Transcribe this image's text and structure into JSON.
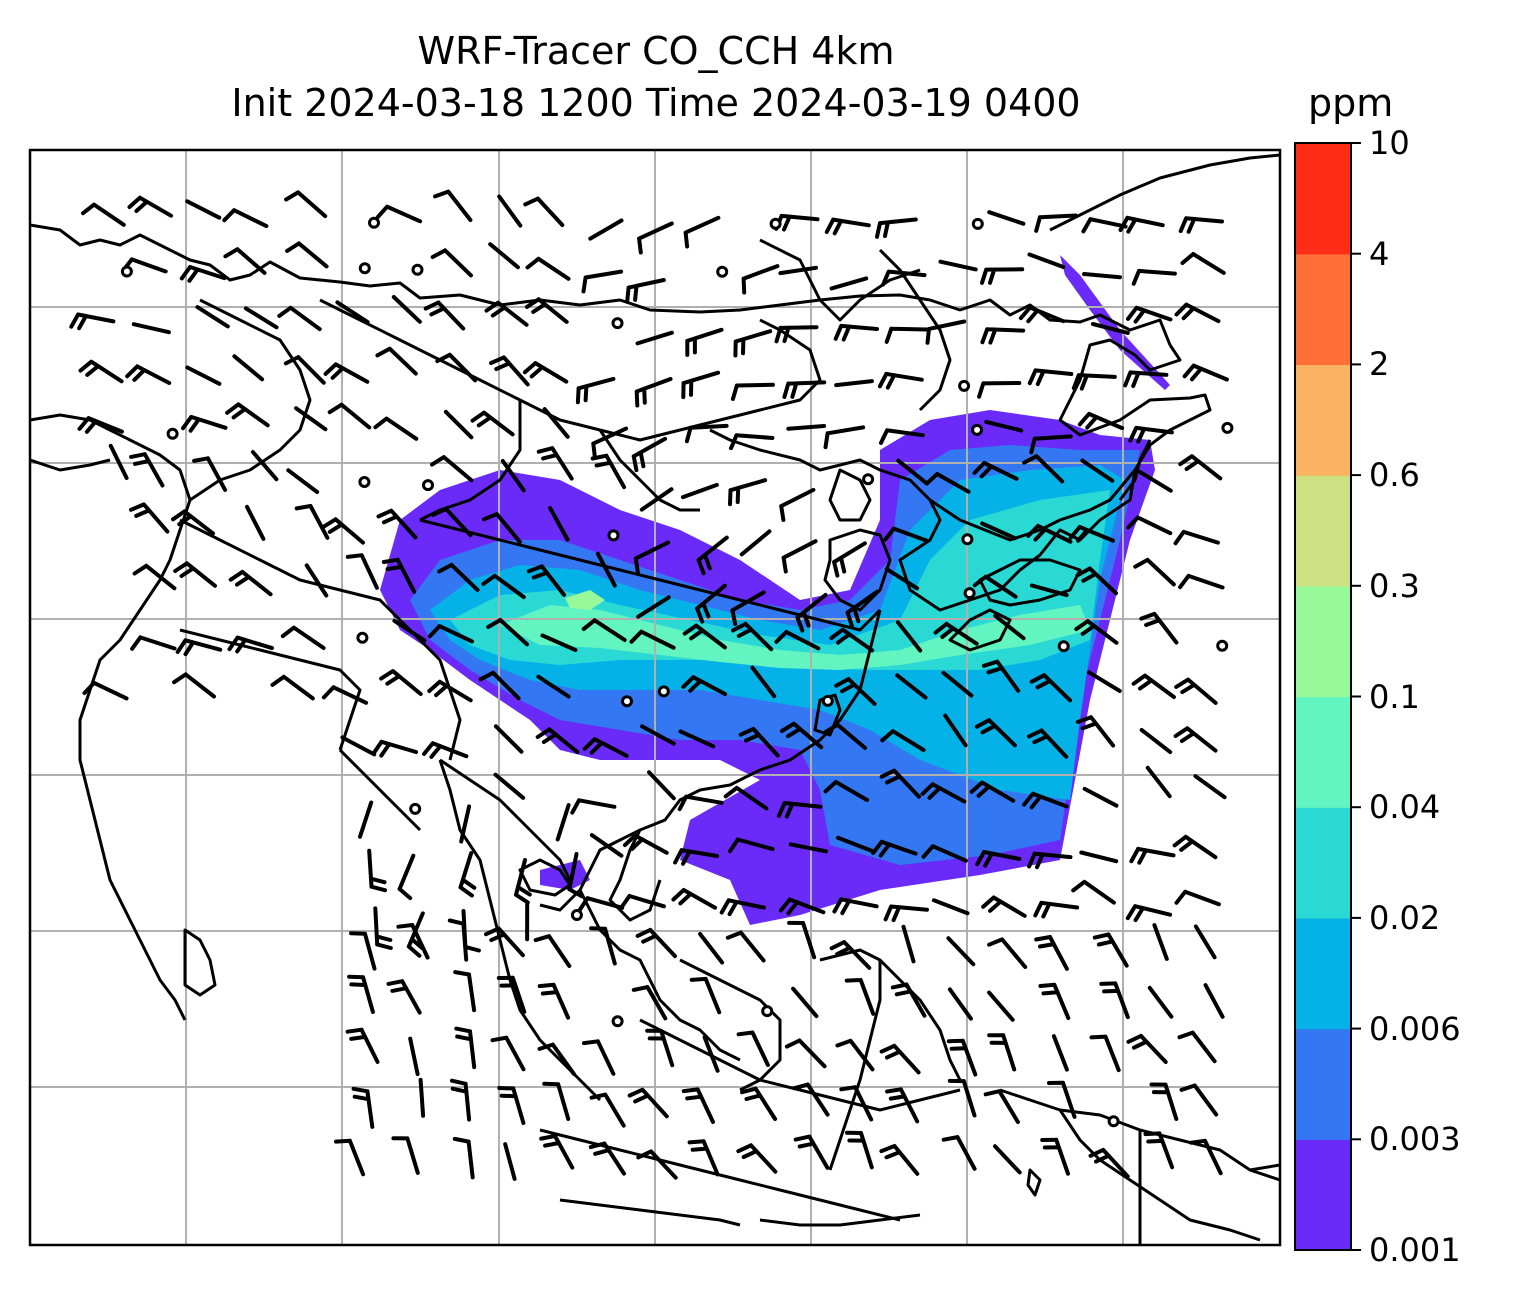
{
  "title": {
    "line1": "WRF-Tracer CO_CCH 4km",
    "line2": "Init 2024-03-18 1200 Time 2024-03-19 0400"
  },
  "colorbar": {
    "units": "ppm",
    "levels": [
      "0.001",
      "0.003",
      "0.006",
      "0.02",
      "0.04",
      "0.1",
      "0.3",
      "0.6",
      "2",
      "4",
      "10"
    ],
    "colors": [
      "#6a2af7",
      "#3477f2",
      "#05b2e8",
      "#2ad9d4",
      "#62f5c2",
      "#98f99a",
      "#cfe082",
      "#fcb361",
      "#fe7038",
      "#fc2c16"
    ]
  },
  "map": {
    "grid_lines": true,
    "tracer_colors": {
      "faint": "#6a2af7",
      "low": "#3477f2",
      "mid": "#05b2e8",
      "mid_high": "#2ad9d4",
      "high": "#62f5c2",
      "peak": "#98f99a"
    }
  }
}
